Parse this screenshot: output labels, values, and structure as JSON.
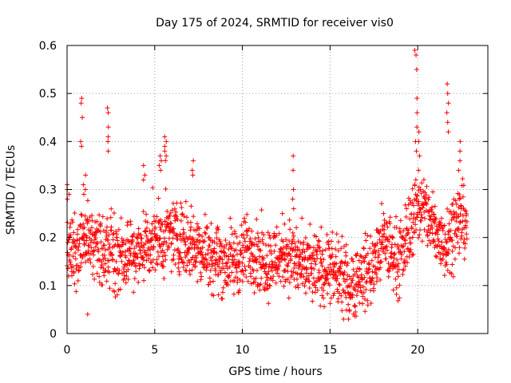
{
  "chart_data": {
    "type": "scatter",
    "title": "Day 175 of 2024, SRMTID for receiver vis0",
    "xlabel": "GPS time / hours",
    "ylabel": "SRMTID / TECUs",
    "xlim": [
      0,
      24
    ],
    "ylim": [
      0,
      0.6
    ],
    "xticks": [
      0,
      5,
      10,
      15,
      20
    ],
    "xtick_labels": [
      "0",
      "5",
      "10",
      "15",
      "20"
    ],
    "yticks": [
      0,
      0.1,
      0.2,
      0.3,
      0.4,
      0.5,
      0.6
    ],
    "ytick_labels": [
      "0",
      "0.1",
      "0.2",
      "0.3",
      "0.4",
      "0.5",
      "0.6"
    ],
    "grid": true,
    "marker": "plus",
    "marker_color": "#ff0000",
    "profile": {
      "x": [
        0,
        0.5,
        1,
        1.5,
        2,
        2.5,
        3,
        3.5,
        4,
        4.5,
        5,
        5.5,
        6,
        6.5,
        7,
        7.5,
        8,
        8.5,
        9,
        9.5,
        10,
        10.5,
        11,
        11.5,
        12,
        12.5,
        13,
        13.5,
        14,
        14.5,
        15,
        15.5,
        16,
        16.5,
        17,
        17.5,
        18,
        18.5,
        19,
        19.5,
        20,
        20.5,
        21,
        21.5,
        22,
        22.5
      ],
      "y": [
        0.18,
        0.16,
        0.2,
        0.19,
        0.17,
        0.18,
        0.16,
        0.17,
        0.16,
        0.19,
        0.2,
        0.19,
        0.21,
        0.2,
        0.19,
        0.18,
        0.17,
        0.16,
        0.15,
        0.15,
        0.16,
        0.18,
        0.16,
        0.15,
        0.16,
        0.17,
        0.15,
        0.14,
        0.13,
        0.14,
        0.13,
        0.12,
        0.1,
        0.11,
        0.13,
        0.14,
        0.19,
        0.17,
        0.15,
        0.22,
        0.27,
        0.25,
        0.21,
        0.19,
        0.22,
        0.24
      ]
    },
    "spikes": [
      {
        "x": 0.05,
        "values": [
          0.31,
          0.3,
          0.29,
          0.28
        ]
      },
      {
        "x": 0.8,
        "values": [
          0.49,
          0.48,
          0.45,
          0.4,
          0.39
        ]
      },
      {
        "x": 1.0,
        "values": [
          0.33,
          0.31,
          0.3,
          0.29
        ]
      },
      {
        "x": 1.1,
        "values": [
          0.04
        ]
      },
      {
        "x": 2.3,
        "values": [
          0.47,
          0.46,
          0.43,
          0.41,
          0.4,
          0.38
        ]
      },
      {
        "x": 4.4,
        "values": [
          0.35,
          0.33,
          0.32
        ]
      },
      {
        "x": 5.3,
        "values": [
          0.37,
          0.36,
          0.35,
          0.34
        ]
      },
      {
        "x": 5.6,
        "values": [
          0.41,
          0.4,
          0.39,
          0.38,
          0.37,
          0.36
        ]
      },
      {
        "x": 7.2,
        "values": [
          0.36,
          0.34,
          0.33
        ]
      },
      {
        "x": 12.9,
        "values": [
          0.37,
          0.34,
          0.3,
          0.28,
          0.26
        ]
      },
      {
        "x": 19.9,
        "values": [
          0.59,
          0.58,
          0.55,
          0.49,
          0.46,
          0.43,
          0.4,
          0.38
        ]
      },
      {
        "x": 20.1,
        "values": [
          0.42,
          0.4,
          0.37,
          0.34
        ]
      },
      {
        "x": 21.7,
        "values": [
          0.52,
          0.5,
          0.48,
          0.46,
          0.44,
          0.42
        ]
      },
      {
        "x": 22.4,
        "values": [
          0.4,
          0.38,
          0.36,
          0.34
        ]
      }
    ]
  }
}
